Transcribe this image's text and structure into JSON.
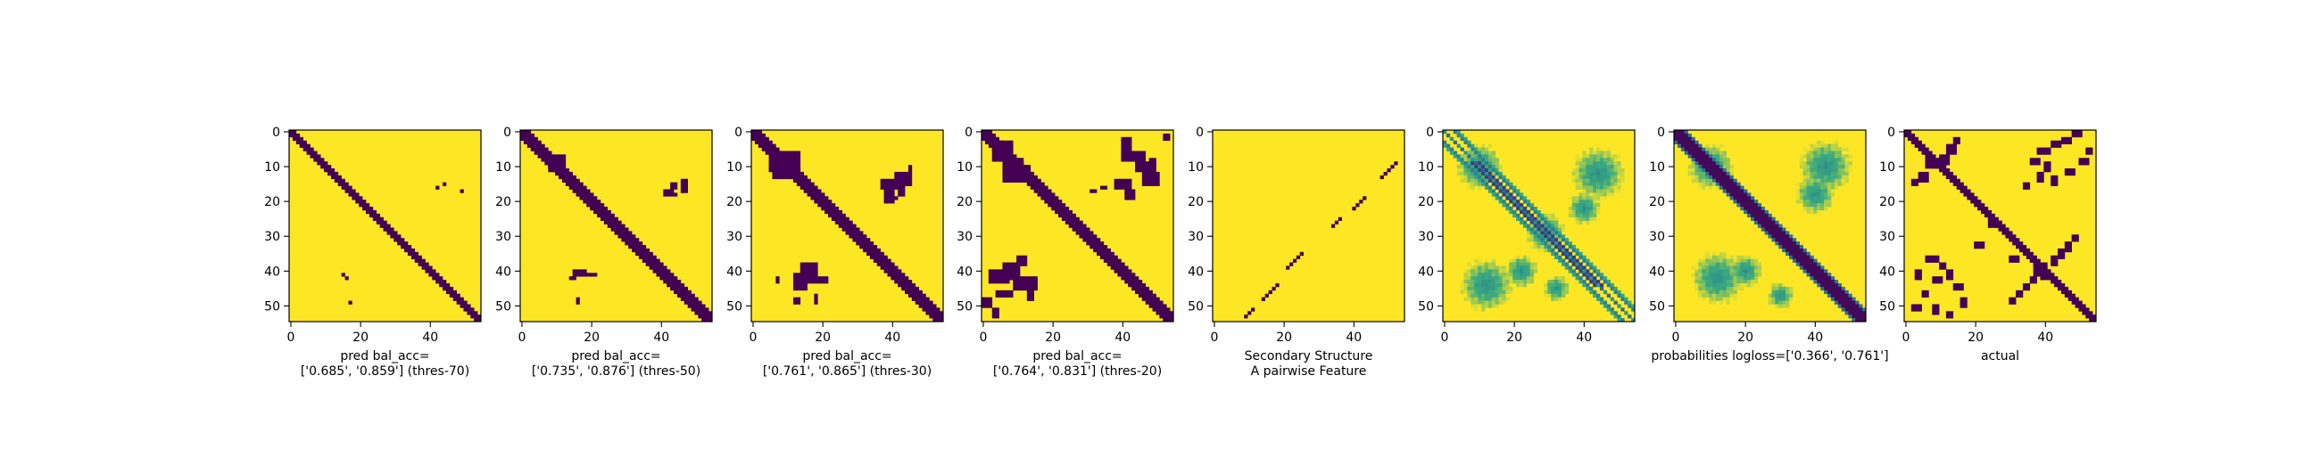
{
  "colors": {
    "low": "#440154",
    "high": "#fde725",
    "mid_green": "#3dab7e",
    "mid_teal": "#2a8f8a",
    "mid_blue": "#31688e"
  },
  "chart_data": [
    {
      "type": "heatmap",
      "size": 55,
      "xticks": [
        0,
        20,
        40
      ],
      "yticks": [
        0,
        10,
        20,
        30,
        40,
        50
      ],
      "xlim": [
        0,
        55
      ],
      "ylim": [
        55,
        0
      ],
      "caption_lines": [
        "pred bal_acc=",
        "['0.685', '0.859'] (thres-70)"
      ],
      "pattern": "diagonal",
      "band_halfwidth": 1.2,
      "blobs": [
        {
          "x": 42,
          "y": 16,
          "w": 1,
          "h": 1
        },
        {
          "x": 44,
          "y": 15,
          "w": 1,
          "h": 1
        },
        {
          "x": 49,
          "y": 17,
          "w": 1,
          "h": 1
        },
        {
          "x": 15,
          "y": 41,
          "w": 1,
          "h": 1
        },
        {
          "x": 16,
          "y": 42,
          "w": 1,
          "h": 1
        },
        {
          "x": 17,
          "y": 49,
          "w": 1,
          "h": 1
        }
      ]
    },
    {
      "type": "heatmap",
      "size": 55,
      "xticks": [
        0,
        20,
        40
      ],
      "yticks": [
        0,
        10,
        20,
        30,
        40,
        50
      ],
      "xlim": [
        0,
        55
      ],
      "ylim": [
        55,
        0
      ],
      "caption_lines": [
        "pred bal_acc=",
        "['0.735', '0.876'] (thres-50)"
      ],
      "pattern": "diagonal",
      "band_halfwidth": 2.0,
      "blobs": [
        {
          "x": 8,
          "y": 7,
          "w": 5,
          "h": 5
        },
        {
          "x": 41,
          "y": 17,
          "w": 3,
          "h": 2
        },
        {
          "x": 43,
          "y": 15,
          "w": 2,
          "h": 2
        },
        {
          "x": 46,
          "y": 14,
          "w": 2,
          "h": 4
        },
        {
          "x": 44,
          "y": 18,
          "w": 1,
          "h": 1
        },
        {
          "x": 15,
          "y": 40,
          "w": 4,
          "h": 2
        },
        {
          "x": 19,
          "y": 41,
          "w": 3,
          "h": 1
        },
        {
          "x": 14,
          "y": 42,
          "w": 2,
          "h": 1
        },
        {
          "x": 16,
          "y": 48,
          "w": 1,
          "h": 2
        }
      ]
    },
    {
      "type": "heatmap",
      "size": 55,
      "xticks": [
        0,
        20,
        40
      ],
      "yticks": [
        0,
        10,
        20,
        30,
        40,
        50
      ],
      "xlim": [
        0,
        55
      ],
      "ylim": [
        55,
        0
      ],
      "caption_lines": [
        "pred bal_acc=",
        "['0.761', '0.865'] (thres-30)"
      ],
      "pattern": "diagonal",
      "band_halfwidth": 2.3,
      "blobs": [
        {
          "x": 6,
          "y": 6,
          "w": 8,
          "h": 8
        },
        {
          "x": 5,
          "y": 8,
          "w": 3,
          "h": 4
        },
        {
          "x": 37,
          "y": 14,
          "w": 5,
          "h": 3
        },
        {
          "x": 38,
          "y": 17,
          "w": 3,
          "h": 4
        },
        {
          "x": 41,
          "y": 12,
          "w": 5,
          "h": 4
        },
        {
          "x": 42,
          "y": 16,
          "w": 2,
          "h": 3
        },
        {
          "x": 45,
          "y": 10,
          "w": 1,
          "h": 2
        },
        {
          "x": 41,
          "y": 19,
          "w": 1,
          "h": 1
        },
        {
          "x": 14,
          "y": 38,
          "w": 5,
          "h": 4
        },
        {
          "x": 12,
          "y": 41,
          "w": 4,
          "h": 5
        },
        {
          "x": 16,
          "y": 42,
          "w": 6,
          "h": 2
        },
        {
          "x": 7,
          "y": 42,
          "w": 1,
          "h": 2
        },
        {
          "x": 12,
          "y": 48,
          "w": 2,
          "h": 2
        },
        {
          "x": 18,
          "y": 47,
          "w": 1,
          "h": 3
        }
      ]
    },
    {
      "type": "heatmap",
      "size": 55,
      "xticks": [
        0,
        20,
        40
      ],
      "yticks": [
        0,
        10,
        20,
        30,
        40,
        50
      ],
      "xlim": [
        0,
        55
      ],
      "ylim": [
        55,
        0
      ],
      "caption_lines": [
        "pred bal_acc=",
        "['0.764', '0.831'] (thres-20)"
      ],
      "pattern": "diagonal",
      "band_halfwidth": 2.6,
      "blobs": [
        {
          "x": 3,
          "y": 3,
          "w": 6,
          "h": 6
        },
        {
          "x": 6,
          "y": 8,
          "w": 6,
          "h": 7
        },
        {
          "x": 11,
          "y": 10,
          "w": 3,
          "h": 3
        },
        {
          "x": 40,
          "y": 2,
          "w": 3,
          "h": 7
        },
        {
          "x": 42,
          "y": 6,
          "w": 5,
          "h": 3
        },
        {
          "x": 44,
          "y": 9,
          "w": 6,
          "h": 3
        },
        {
          "x": 46,
          "y": 12,
          "w": 5,
          "h": 4
        },
        {
          "x": 38,
          "y": 14,
          "w": 5,
          "h": 3
        },
        {
          "x": 41,
          "y": 17,
          "w": 3,
          "h": 3
        },
        {
          "x": 48,
          "y": 8,
          "w": 2,
          "h": 2
        },
        {
          "x": 52,
          "y": 1,
          "w": 2,
          "h": 2
        },
        {
          "x": 31,
          "y": 17,
          "w": 2,
          "h": 1
        },
        {
          "x": 34,
          "y": 16,
          "w": 2,
          "h": 1
        },
        {
          "x": 2,
          "y": 40,
          "w": 6,
          "h": 4
        },
        {
          "x": 6,
          "y": 38,
          "w": 5,
          "h": 5
        },
        {
          "x": 10,
          "y": 36,
          "w": 3,
          "h": 3
        },
        {
          "x": 9,
          "y": 42,
          "w": 7,
          "h": 4
        },
        {
          "x": 4,
          "y": 46,
          "w": 5,
          "h": 2
        },
        {
          "x": 0,
          "y": 48,
          "w": 3,
          "h": 3
        },
        {
          "x": 3,
          "y": 51,
          "w": 2,
          "h": 3
        },
        {
          "x": 13,
          "y": 46,
          "w": 2,
          "h": 3
        }
      ]
    },
    {
      "type": "heatmap",
      "size": 55,
      "xticks": [
        0,
        20,
        40
      ],
      "yticks": [
        0,
        10,
        20,
        30,
        40,
        50
      ],
      "xlim": [
        0,
        55
      ],
      "ylim": [
        55,
        0
      ],
      "caption_lines": [
        "Secondary Structure",
        "A pairwise Feature"
      ],
      "pattern": "antidiagonal",
      "segments": [
        [
          52,
          9
        ],
        [
          51,
          10
        ],
        [
          50,
          11
        ],
        [
          49,
          12
        ],
        [
          48,
          13
        ],
        [
          43,
          19
        ],
        [
          42,
          20
        ],
        [
          41,
          21
        ],
        [
          40,
          22
        ],
        [
          36,
          25
        ],
        [
          35,
          26
        ],
        [
          34,
          27
        ],
        [
          25,
          35
        ],
        [
          24,
          36
        ],
        [
          23,
          37
        ],
        [
          22,
          38
        ],
        [
          21,
          39
        ],
        [
          18,
          44
        ],
        [
          17,
          45
        ],
        [
          16,
          46
        ],
        [
          15,
          47
        ],
        [
          14,
          48
        ],
        [
          11,
          51
        ],
        [
          10,
          52
        ],
        [
          9,
          53
        ]
      ]
    },
    {
      "type": "heatmap",
      "size": 55,
      "xticks": [
        0,
        20,
        40
      ],
      "yticks": [
        0,
        10,
        20,
        30,
        40,
        50
      ],
      "xlim": [
        0,
        55
      ],
      "ylim": [
        55,
        0
      ],
      "caption_lines": [],
      "pattern": "probability-stripes",
      "stripe_offset": 3,
      "clouds": [
        {
          "cx": 10,
          "cy": 10,
          "r": 7
        },
        {
          "cx": 29,
          "cy": 29,
          "r": 6
        },
        {
          "cx": 44,
          "cy": 12,
          "r": 8
        },
        {
          "cx": 40,
          "cy": 22,
          "r": 5
        },
        {
          "cx": 12,
          "cy": 44,
          "r": 8
        },
        {
          "cx": 22,
          "cy": 40,
          "r": 5
        },
        {
          "cx": 32,
          "cy": 45,
          "r": 4
        }
      ]
    },
    {
      "type": "heatmap",
      "size": 55,
      "xticks": [
        0,
        20,
        40
      ],
      "yticks": [
        0,
        10,
        20,
        30,
        40,
        50
      ],
      "xlim": [
        0,
        55
      ],
      "ylim": [
        55,
        0
      ],
      "caption_lines": [
        "probabilities logloss=['0.366', '0.761']"
      ],
      "pattern": "probability-diagonal",
      "band_halfwidth": 2.0,
      "clouds": [
        {
          "cx": 10,
          "cy": 10,
          "r": 7
        },
        {
          "cx": 43,
          "cy": 10,
          "r": 8
        },
        {
          "cx": 40,
          "cy": 18,
          "r": 6
        },
        {
          "cx": 12,
          "cy": 42,
          "r": 8
        },
        {
          "cx": 20,
          "cy": 40,
          "r": 5
        },
        {
          "cx": 30,
          "cy": 47,
          "r": 4
        }
      ]
    },
    {
      "type": "heatmap",
      "size": 55,
      "xticks": [
        0,
        20,
        40
      ],
      "yticks": [
        0,
        10,
        20,
        30,
        40,
        50
      ],
      "xlim": [
        0,
        55
      ],
      "ylim": [
        55,
        0
      ],
      "caption_lines": [
        "actual"
      ],
      "pattern": "diagonal",
      "band_halfwidth": 1.6,
      "blobs": [
        {
          "x": 6,
          "y": 8,
          "w": 5,
          "h": 3
        },
        {
          "x": 10,
          "y": 7,
          "w": 3,
          "h": 3
        },
        {
          "x": 12,
          "y": 4,
          "w": 3,
          "h": 3
        },
        {
          "x": 14,
          "y": 2,
          "w": 2,
          "h": 2
        },
        {
          "x": 4,
          "y": 12,
          "w": 3,
          "h": 3
        },
        {
          "x": 2,
          "y": 14,
          "w": 2,
          "h": 2
        },
        {
          "x": 38,
          "y": 5,
          "w": 4,
          "h": 2
        },
        {
          "x": 42,
          "y": 3,
          "w": 3,
          "h": 2
        },
        {
          "x": 45,
          "y": 2,
          "w": 3,
          "h": 2
        },
        {
          "x": 48,
          "y": 0,
          "w": 3,
          "h": 2
        },
        {
          "x": 36,
          "y": 8,
          "w": 3,
          "h": 2
        },
        {
          "x": 40,
          "y": 9,
          "w": 2,
          "h": 3
        },
        {
          "x": 38,
          "y": 12,
          "w": 2,
          "h": 3
        },
        {
          "x": 42,
          "y": 13,
          "w": 2,
          "h": 3
        },
        {
          "x": 34,
          "y": 15,
          "w": 2,
          "h": 2
        },
        {
          "x": 46,
          "y": 11,
          "w": 3,
          "h": 2
        },
        {
          "x": 50,
          "y": 8,
          "w": 3,
          "h": 2
        },
        {
          "x": 52,
          "y": 5,
          "w": 2,
          "h": 2
        },
        {
          "x": 24,
          "y": 26,
          "w": 3,
          "h": 2
        },
        {
          "x": 20,
          "y": 32,
          "w": 3,
          "h": 2
        },
        {
          "x": 30,
          "y": 36,
          "w": 3,
          "h": 2
        },
        {
          "x": 37,
          "y": 38,
          "w": 4,
          "h": 4
        },
        {
          "x": 39,
          "y": 40,
          "w": 3,
          "h": 3
        },
        {
          "x": 36,
          "y": 42,
          "w": 2,
          "h": 2
        },
        {
          "x": 42,
          "y": 36,
          "w": 2,
          "h": 3
        },
        {
          "x": 44,
          "y": 34,
          "w": 2,
          "h": 3
        },
        {
          "x": 46,
          "y": 32,
          "w": 2,
          "h": 3
        },
        {
          "x": 48,
          "y": 30,
          "w": 2,
          "h": 2
        },
        {
          "x": 34,
          "y": 44,
          "w": 2,
          "h": 2
        },
        {
          "x": 32,
          "y": 46,
          "w": 2,
          "h": 2
        },
        {
          "x": 30,
          "y": 48,
          "w": 2,
          "h": 2
        },
        {
          "x": 6,
          "y": 36,
          "w": 4,
          "h": 2
        },
        {
          "x": 10,
          "y": 38,
          "w": 2,
          "h": 2
        },
        {
          "x": 3,
          "y": 40,
          "w": 2,
          "h": 3
        },
        {
          "x": 8,
          "y": 42,
          "w": 3,
          "h": 2
        },
        {
          "x": 12,
          "y": 40,
          "w": 2,
          "h": 3
        },
        {
          "x": 14,
          "y": 44,
          "w": 3,
          "h": 2
        },
        {
          "x": 5,
          "y": 46,
          "w": 2,
          "h": 2
        },
        {
          "x": 2,
          "y": 50,
          "w": 3,
          "h": 2
        },
        {
          "x": 8,
          "y": 50,
          "w": 2,
          "h": 3
        },
        {
          "x": 12,
          "y": 52,
          "w": 2,
          "h": 2
        },
        {
          "x": 16,
          "y": 48,
          "w": 2,
          "h": 3
        }
      ]
    }
  ]
}
